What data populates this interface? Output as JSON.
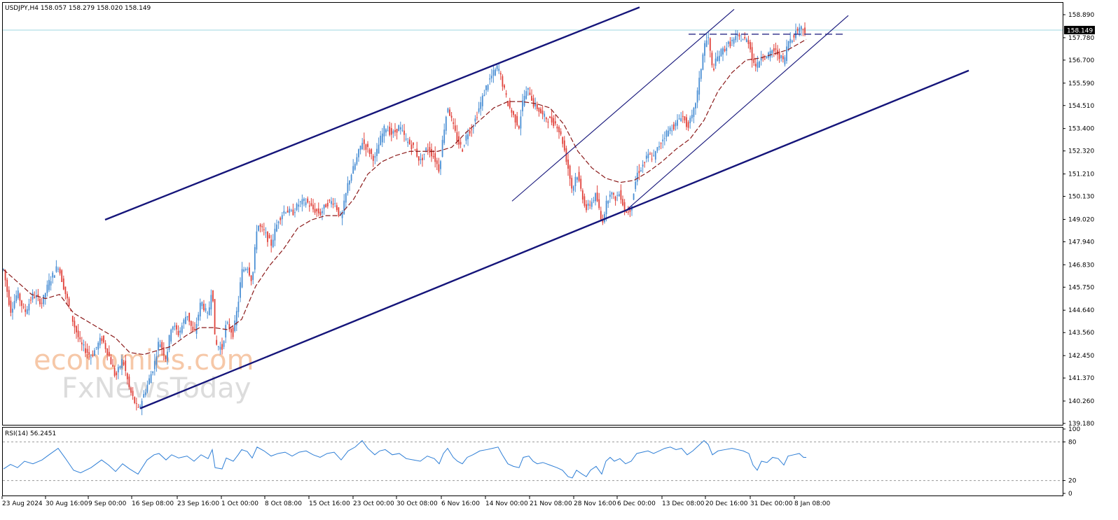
{
  "chart_data": [
    {
      "type": "candlestick",
      "symbol_header": "USDJPY,H4  158.057 158.279 158.020 158.149",
      "current_price_label": "158.149",
      "price_ticks": [
        "158.890",
        "157.780",
        "156.700",
        "155.590",
        "154.510",
        "153.400",
        "152.320",
        "151.210",
        "150.130",
        "149.020",
        "147.940",
        "146.830",
        "145.750",
        "144.640",
        "143.560",
        "142.450",
        "141.370",
        "140.260",
        "139.180"
      ],
      "x_labels": [
        "23 Aug 2024",
        "30 Aug 16:00",
        "9 Sep 00:00",
        "16 Sep 08:00",
        "23 Sep 16:00",
        "1 Oct 00:00",
        "8 Oct 08:00",
        "15 Oct 16:00",
        "23 Oct 00:00",
        "30 Oct 08:00",
        "6 Nov 16:00",
        "14 Nov 00:00",
        "21 Nov 08:00",
        "28 Nov 16:00",
        "6 Dec 00:00",
        "13 Dec 08:00",
        "20 Dec 16:00",
        "31 Dec 00:00",
        "8 Jan 08:00"
      ],
      "price_path": [
        [
          0,
          146.6
        ],
        [
          10,
          144.6
        ],
        [
          20,
          145.5
        ],
        [
          30,
          144.5
        ],
        [
          42,
          145.4
        ],
        [
          55,
          145.0
        ],
        [
          65,
          146.0
        ],
        [
          78,
          146.8
        ],
        [
          88,
          145.5
        ],
        [
          100,
          144.0
        ],
        [
          110,
          143.0
        ],
        [
          125,
          142.4
        ],
        [
          140,
          143.3
        ],
        [
          150,
          142.5
        ],
        [
          160,
          141.4
        ],
        [
          170,
          142.3
        ],
        [
          180,
          140.8
        ],
        [
          192,
          139.8
        ],
        [
          205,
          141.0
        ],
        [
          215,
          142.0
        ],
        [
          222,
          143.2
        ],
        [
          232,
          142.3
        ],
        [
          240,
          144.0
        ],
        [
          250,
          143.5
        ],
        [
          262,
          144.5
        ],
        [
          272,
          143.4
        ],
        [
          282,
          145.1
        ],
        [
          292,
          144.3
        ],
        [
          298,
          146.0
        ],
        [
          302,
          143.0
        ],
        [
          312,
          142.8
        ],
        [
          318,
          144.0
        ],
        [
          328,
          143.5
        ],
        [
          335,
          145.0
        ],
        [
          340,
          146.5
        ],
        [
          348,
          146.8
        ],
        [
          355,
          146.0
        ],
        [
          362,
          148.8
        ],
        [
          372,
          148.4
        ],
        [
          382,
          147.8
        ],
        [
          392,
          149.0
        ],
        [
          402,
          149.5
        ],
        [
          412,
          149.3
        ],
        [
          422,
          149.8
        ],
        [
          432,
          149.9
        ],
        [
          442,
          149.5
        ],
        [
          452,
          149.3
        ],
        [
          462,
          149.8
        ],
        [
          472,
          149.9
        ],
        [
          482,
          149.0
        ],
        [
          492,
          150.8
        ],
        [
          502,
          151.7
        ],
        [
          512,
          152.8
        ],
        [
          520,
          152.4
        ],
        [
          530,
          151.9
        ],
        [
          537,
          152.8
        ],
        [
          545,
          153.5
        ],
        [
          555,
          153.1
        ],
        [
          565,
          153.5
        ],
        [
          575,
          152.8
        ],
        [
          585,
          152.5
        ],
        [
          595,
          151.8
        ],
        [
          605,
          152.5
        ],
        [
          615,
          152.0
        ],
        [
          622,
          151.4
        ],
        [
          628,
          153.2
        ],
        [
          634,
          154.5
        ],
        [
          642,
          153.5
        ],
        [
          648,
          152.8
        ],
        [
          655,
          152.4
        ],
        [
          662,
          153.2
        ],
        [
          670,
          153.5
        ],
        [
          680,
          154.5
        ],
        [
          690,
          155.5
        ],
        [
          698,
          156.0
        ],
        [
          706,
          156.4
        ],
        [
          712,
          155.6
        ],
        [
          720,
          154.6
        ],
        [
          728,
          154.0
        ],
        [
          736,
          153.5
        ],
        [
          742,
          154.9
        ],
        [
          750,
          155.3
        ],
        [
          756,
          154.6
        ],
        [
          762,
          154.4
        ],
        [
          770,
          154.0
        ],
        [
          780,
          153.8
        ],
        [
          790,
          153.6
        ],
        [
          798,
          152.8
        ],
        [
          806,
          151.5
        ],
        [
          812,
          150.4
        ],
        [
          818,
          151.3
        ],
        [
          826,
          150.2
        ],
        [
          832,
          149.5
        ],
        [
          838,
          149.8
        ],
        [
          846,
          150.2
        ],
        [
          854,
          148.8
        ],
        [
          860,
          149.7
        ],
        [
          866,
          150.4
        ],
        [
          872,
          150.0
        ],
        [
          880,
          150.3
        ],
        [
          888,
          149.3
        ],
        [
          896,
          149.6
        ],
        [
          904,
          151.2
        ],
        [
          912,
          151.6
        ],
        [
          920,
          152.1
        ],
        [
          928,
          152.0
        ],
        [
          936,
          152.6
        ],
        [
          944,
          153.1
        ],
        [
          952,
          153.4
        ],
        [
          960,
          153.6
        ],
        [
          968,
          154.1
        ],
        [
          976,
          153.5
        ],
        [
          984,
          154.0
        ],
        [
          992,
          155.4
        ],
        [
          1000,
          157.4
        ],
        [
          1006,
          157.8
        ],
        [
          1012,
          156.2
        ],
        [
          1020,
          156.9
        ],
        [
          1030,
          157.3
        ],
        [
          1040,
          157.6
        ],
        [
          1048,
          157.8
        ],
        [
          1056,
          157.7
        ],
        [
          1064,
          157.6
        ],
        [
          1070,
          156.6
        ],
        [
          1076,
          156.4
        ],
        [
          1082,
          157.0
        ],
        [
          1090,
          156.8
        ],
        [
          1098,
          157.2
        ],
        [
          1106,
          157.0
        ],
        [
          1114,
          156.6
        ],
        [
          1120,
          157.6
        ],
        [
          1128,
          157.9
        ],
        [
          1136,
          158.3
        ],
        [
          1142,
          158.2
        ],
        [
          1146,
          158.1
        ]
      ],
      "moving_average_path": [
        [
          0,
          146.6
        ],
        [
          20,
          146.0
        ],
        [
          40,
          145.4
        ],
        [
          60,
          145.2
        ],
        [
          80,
          145.4
        ],
        [
          100,
          144.5
        ],
        [
          130,
          143.9
        ],
        [
          160,
          143.3
        ],
        [
          180,
          142.6
        ],
        [
          200,
          142.5
        ],
        [
          220,
          142.7
        ],
        [
          240,
          142.9
        ],
        [
          260,
          143.4
        ],
        [
          280,
          143.8
        ],
        [
          300,
          143.8
        ],
        [
          320,
          143.7
        ],
        [
          340,
          144.2
        ],
        [
          360,
          145.8
        ],
        [
          380,
          146.8
        ],
        [
          400,
          147.6
        ],
        [
          420,
          148.6
        ],
        [
          440,
          149.0
        ],
        [
          460,
          149.2
        ],
        [
          480,
          149.2
        ],
        [
          500,
          150.0
        ],
        [
          520,
          151.2
        ],
        [
          540,
          151.8
        ],
        [
          560,
          152.1
        ],
        [
          580,
          152.3
        ],
        [
          600,
          152.3
        ],
        [
          620,
          152.3
        ],
        [
          640,
          152.5
        ],
        [
          660,
          153.2
        ],
        [
          680,
          153.8
        ],
        [
          700,
          154.4
        ],
        [
          720,
          154.7
        ],
        [
          740,
          154.7
        ],
        [
          760,
          154.6
        ],
        [
          780,
          154.4
        ],
        [
          800,
          153.6
        ],
        [
          820,
          152.3
        ],
        [
          840,
          151.5
        ],
        [
          860,
          151.0
        ],
        [
          880,
          150.8
        ],
        [
          900,
          150.9
        ],
        [
          920,
          151.3
        ],
        [
          940,
          151.8
        ],
        [
          960,
          152.4
        ],
        [
          980,
          152.9
        ],
        [
          1000,
          153.8
        ],
        [
          1020,
          155.2
        ],
        [
          1040,
          156.1
        ],
        [
          1060,
          156.7
        ],
        [
          1080,
          156.8
        ],
        [
          1100,
          157.0
        ],
        [
          1120,
          157.2
        ],
        [
          1146,
          157.7
        ]
      ],
      "trend_lines": [
        {
          "style": "thick",
          "x1": 145,
          "y1": 149.0,
          "x2": 908,
          "y2": 159.25
        },
        {
          "style": "thick",
          "x1": 195,
          "y1": 139.9,
          "x2": 1378,
          "y2": 156.2
        },
        {
          "style": "thin",
          "x1": 726,
          "y1": 149.9,
          "x2": 1043,
          "y2": 159.15
        },
        {
          "style": "thin",
          "x1": 887,
          "y1": 149.4,
          "x2": 1206,
          "y2": 158.85
        },
        {
          "style": "dashed",
          "x1": 978,
          "y1": 157.95,
          "x2": 1198,
          "y2": 157.95
        }
      ],
      "horizontal_line": {
        "price": 158.149
      },
      "watermark": {
        "line1": "economies.com",
        "line2": "FxNewsToday"
      }
    },
    {
      "type": "line",
      "indicator_label": "RSI(14) 56.2451",
      "y_ticks": [
        "100",
        "80",
        "20",
        "0"
      ],
      "levels": [
        80,
        20
      ],
      "ylim": [
        0,
        100
      ],
      "values": [
        [
          0,
          38
        ],
        [
          10,
          45
        ],
        [
          20,
          40
        ],
        [
          30,
          50
        ],
        [
          42,
          46
        ],
        [
          55,
          52
        ],
        [
          65,
          60
        ],
        [
          78,
          70
        ],
        [
          88,
          55
        ],
        [
          100,
          36
        ],
        [
          110,
          32
        ],
        [
          125,
          40
        ],
        [
          140,
          52
        ],
        [
          150,
          44
        ],
        [
          160,
          34
        ],
        [
          170,
          46
        ],
        [
          180,
          38
        ],
        [
          192,
          30
        ],
        [
          205,
          52
        ],
        [
          215,
          60
        ],
        [
          222,
          62
        ],
        [
          232,
          52
        ],
        [
          240,
          60
        ],
        [
          250,
          55
        ],
        [
          262,
          58
        ],
        [
          272,
          50
        ],
        [
          282,
          60
        ],
        [
          292,
          54
        ],
        [
          298,
          68
        ],
        [
          302,
          40
        ],
        [
          312,
          38
        ],
        [
          318,
          55
        ],
        [
          328,
          50
        ],
        [
          335,
          60
        ],
        [
          340,
          68
        ],
        [
          348,
          65
        ],
        [
          355,
          55
        ],
        [
          362,
          72
        ],
        [
          372,
          66
        ],
        [
          382,
          58
        ],
        [
          392,
          62
        ],
        [
          402,
          64
        ],
        [
          412,
          58
        ],
        [
          422,
          64
        ],
        [
          432,
          66
        ],
        [
          442,
          60
        ],
        [
          452,
          56
        ],
        [
          462,
          62
        ],
        [
          472,
          64
        ],
        [
          482,
          52
        ],
        [
          492,
          66
        ],
        [
          502,
          72
        ],
        [
          512,
          82
        ],
        [
          520,
          70
        ],
        [
          530,
          60
        ],
        [
          537,
          66
        ],
        [
          545,
          68
        ],
        [
          555,
          60
        ],
        [
          565,
          62
        ],
        [
          575,
          54
        ],
        [
          585,
          52
        ],
        [
          595,
          50
        ],
        [
          605,
          58
        ],
        [
          615,
          54
        ],
        [
          622,
          46
        ],
        [
          628,
          62
        ],
        [
          634,
          70
        ],
        [
          642,
          56
        ],
        [
          648,
          50
        ],
        [
          655,
          46
        ],
        [
          662,
          56
        ],
        [
          670,
          60
        ],
        [
          680,
          66
        ],
        [
          690,
          68
        ],
        [
          698,
          70
        ],
        [
          706,
          72
        ],
        [
          712,
          60
        ],
        [
          720,
          46
        ],
        [
          728,
          42
        ],
        [
          736,
          40
        ],
        [
          742,
          56
        ],
        [
          750,
          58
        ],
        [
          756,
          50
        ],
        [
          762,
          46
        ],
        [
          770,
          48
        ],
        [
          780,
          44
        ],
        [
          790,
          40
        ],
        [
          798,
          36
        ],
        [
          806,
          26
        ],
        [
          812,
          24
        ],
        [
          818,
          36
        ],
        [
          826,
          30
        ],
        [
          832,
          26
        ],
        [
          838,
          36
        ],
        [
          846,
          42
        ],
        [
          854,
          30
        ],
        [
          860,
          50
        ],
        [
          866,
          56
        ],
        [
          872,
          50
        ],
        [
          880,
          54
        ],
        [
          888,
          46
        ],
        [
          896,
          50
        ],
        [
          904,
          62
        ],
        [
          912,
          64
        ],
        [
          920,
          66
        ],
        [
          928,
          62
        ],
        [
          936,
          66
        ],
        [
          944,
          70
        ],
        [
          952,
          72
        ],
        [
          960,
          68
        ],
        [
          968,
          70
        ],
        [
          976,
          60
        ],
        [
          984,
          66
        ],
        [
          992,
          74
        ],
        [
          1000,
          82
        ],
        [
          1006,
          76
        ],
        [
          1012,
          60
        ],
        [
          1020,
          66
        ],
        [
          1030,
          68
        ],
        [
          1040,
          70
        ],
        [
          1048,
          68
        ],
        [
          1056,
          66
        ],
        [
          1064,
          62
        ],
        [
          1070,
          44
        ],
        [
          1076,
          36
        ],
        [
          1082,
          50
        ],
        [
          1090,
          48
        ],
        [
          1098,
          56
        ],
        [
          1106,
          54
        ],
        [
          1114,
          44
        ],
        [
          1120,
          58
        ],
        [
          1128,
          60
        ],
        [
          1136,
          62
        ],
        [
          1142,
          56
        ],
        [
          1146,
          56
        ]
      ]
    }
  ]
}
